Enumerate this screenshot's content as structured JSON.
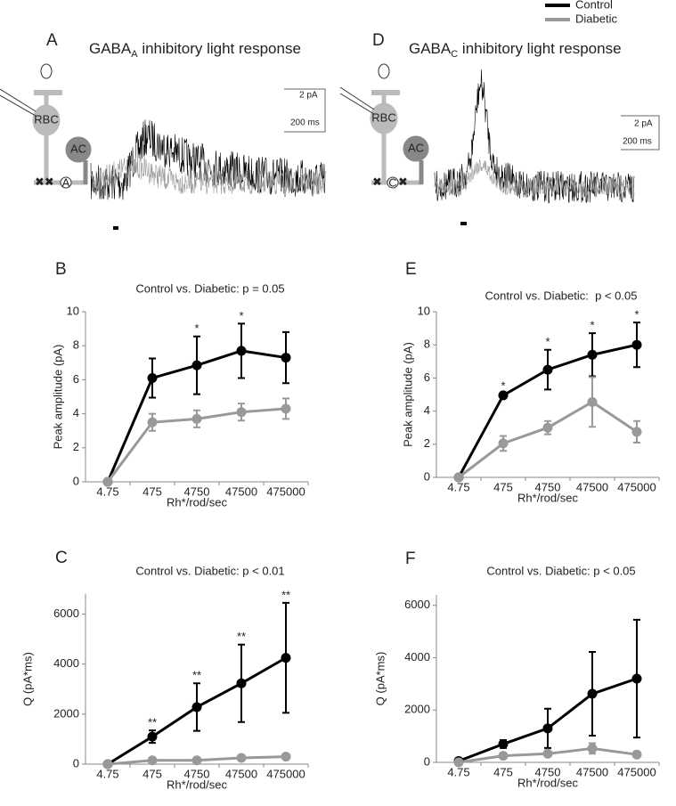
{
  "legend": [
    {
      "name": "Control",
      "color": "#000000"
    },
    {
      "name": "Diabetic",
      "color": "#999999"
    }
  ],
  "panels": [
    {
      "label": "A",
      "title": "GABA",
      "title_sub": "A",
      "title_rest": " inhibitory light response",
      "cell1": "RBC",
      "cell2": "AC",
      "receptor": "A",
      "scale_y": "2 pA",
      "scale_x": "200 ms"
    },
    {
      "label": "D",
      "title": "GABA",
      "title_sub": "C",
      "title_rest": " inhibitory light response",
      "cell1": "RBC",
      "cell2": "AC",
      "receptor": "C",
      "scale_y": "2 pA",
      "scale_x": "200 ms"
    }
  ],
  "chart_data": [
    {
      "type": "line",
      "label": "B",
      "title": "Control vs. Diabetic: p = 0.05",
      "xlabel": "Rh*/rod/sec",
      "ylabel": "Peak amplitude (pA)",
      "categories": [
        "4.75",
        "475",
        "4750",
        "47500",
        "475000"
      ],
      "ylim": [
        0,
        10
      ],
      "yticks": [
        0,
        2,
        4,
        6,
        8,
        10
      ],
      "series": [
        {
          "color": "#000000",
          "values": [
            0,
            6.1,
            6.85,
            7.7,
            7.3
          ],
          "errors": [
            0,
            1.15,
            1.7,
            1.6,
            1.5
          ]
        },
        {
          "color": "#999999",
          "values": [
            0,
            3.5,
            3.7,
            4.1,
            4.3
          ],
          "errors": [
            0,
            0.5,
            0.5,
            0.5,
            0.6
          ]
        }
      ],
      "annotations": [
        null,
        null,
        "*",
        "*",
        null
      ]
    },
    {
      "type": "line",
      "label": "C",
      "title": "Control vs. Diabetic: p < 0.01",
      "xlabel": "Rh*/rod/sec",
      "ylabel": "Q (pA*ms)",
      "categories": [
        "4.75",
        "475",
        "4750",
        "47500",
        "475000"
      ],
      "ylim": [
        0,
        6800
      ],
      "yticks": [
        0,
        2000,
        4000,
        6000
      ],
      "series": [
        {
          "color": "#000000",
          "values": [
            0,
            1100,
            2280,
            3230,
            4250
          ],
          "errors": [
            0,
            250,
            950,
            1550,
            2200
          ]
        },
        {
          "color": "#999999",
          "values": [
            0,
            150,
            150,
            250,
            300
          ],
          "errors": [
            0,
            50,
            50,
            60,
            60
          ]
        }
      ],
      "annotations": [
        null,
        "**",
        "**",
        "**",
        "**"
      ]
    },
    {
      "type": "line",
      "label": "E",
      "title": "Control vs. Diabetic:  p < 0.05",
      "xlabel": "Rh*/rod/sec",
      "ylabel": "Peak amplitude (pA)",
      "categories": [
        "4.75",
        "475",
        "4750",
        "47500",
        "475000"
      ],
      "ylim": [
        0,
        10
      ],
      "yticks": [
        0,
        2,
        4,
        6,
        8,
        10
      ],
      "series": [
        {
          "color": "#000000",
          "values": [
            0,
            4.95,
            6.5,
            7.4,
            8.0
          ],
          "errors": [
            0,
            0.1,
            1.2,
            1.3,
            1.35
          ]
        },
        {
          "color": "#999999",
          "values": [
            0,
            2.05,
            3.0,
            4.55,
            2.75
          ],
          "errors": [
            0,
            0.45,
            0.4,
            1.5,
            0.65
          ]
        }
      ],
      "annotations": [
        null,
        "*",
        "*",
        "*",
        "*"
      ]
    },
    {
      "type": "line",
      "label": "F",
      "title": "Control vs. Diabetic: p < 0.05",
      "xlabel": "Rh*/rod/sec",
      "ylabel": "Q (pA*ms)",
      "categories": [
        "4.75",
        "475",
        "4750",
        "47500",
        "475000"
      ],
      "ylim": [
        0,
        6400
      ],
      "yticks": [
        0,
        2000,
        4000,
        6000
      ],
      "series": [
        {
          "color": "#000000",
          "values": [
            50,
            700,
            1300,
            2620,
            3200
          ],
          "errors": [
            0,
            150,
            750,
            1600,
            2250
          ]
        },
        {
          "color": "#999999",
          "values": [
            0,
            250,
            330,
            530,
            300
          ],
          "errors": [
            0,
            50,
            80,
            200,
            50
          ]
        }
      ],
      "annotations": [
        null,
        null,
        null,
        null,
        null
      ]
    }
  ]
}
